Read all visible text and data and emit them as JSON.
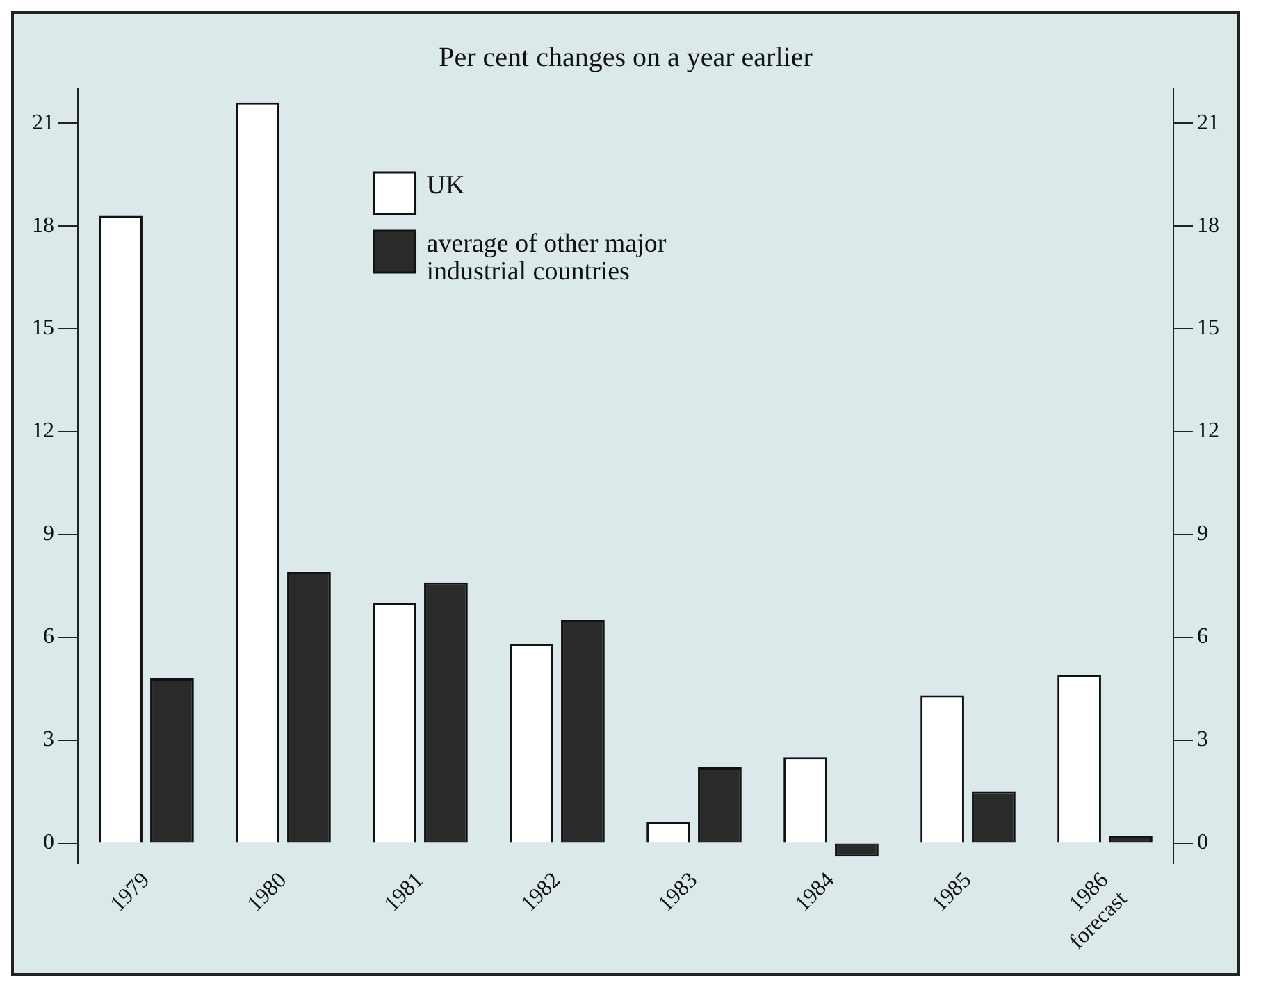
{
  "chart_data": {
    "type": "bar",
    "title": "Per cent changes on a year earlier",
    "categories": [
      "1979",
      "1980",
      "1981",
      "1982",
      "1983",
      "1984",
      "1985",
      "1986\nforecast"
    ],
    "series": [
      {
        "name": "UK",
        "color": "#ffffff",
        "values": [
          18.3,
          21.6,
          7.0,
          5.8,
          0.6,
          2.5,
          4.3,
          4.9
        ]
      },
      {
        "name": "average of other major industrial countries",
        "color": "#2a2a2a",
        "values": [
          4.8,
          7.9,
          7.6,
          6.5,
          2.2,
          -0.4,
          1.5,
          0.2
        ]
      }
    ],
    "ylim": [
      -0.6,
      22
    ],
    "yticks": [
      0,
      3,
      6,
      9,
      12,
      15,
      18,
      21
    ],
    "y2lim": [
      -0.6,
      22
    ],
    "y2ticks": [
      0,
      3,
      6,
      9,
      12,
      15,
      18,
      21
    ],
    "grid": false,
    "legend": "top left"
  }
}
